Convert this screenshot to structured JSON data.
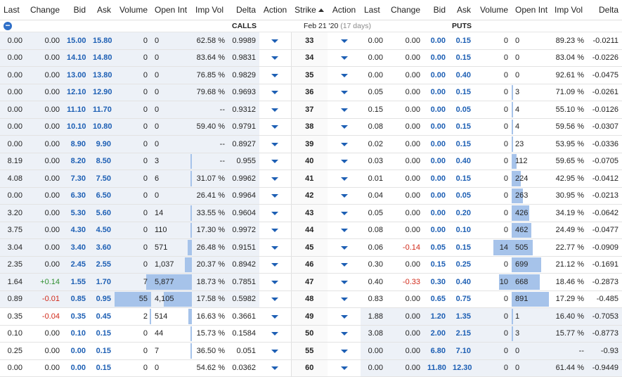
{
  "headers": {
    "calls": [
      "Last",
      "Change",
      "Bid",
      "Ask",
      "Volume",
      "Open Int",
      "Imp Vol",
      "Delta",
      "Action"
    ],
    "strike": "Strike",
    "puts": [
      "Action",
      "Last",
      "Change",
      "Bid",
      "Ask",
      "Volume",
      "Open Int",
      "Imp Vol",
      "Delta"
    ]
  },
  "labels": {
    "calls": "CALLS",
    "puts": "PUTS",
    "expiry": "Feb 21 '20",
    "days": "(17 days)",
    "collapse": "−"
  },
  "colors": {
    "bid_ask": "#1d5fb4",
    "positive": "#2f8f2f",
    "negative": "#d12a1a",
    "bar": "#a6c3ea",
    "in_the_money": "#edf1f7"
  },
  "rows": [
    {
      "strike": "33",
      "call": {
        "last": "0.00",
        "change": "0.00",
        "bid": "15.00",
        "ask": "15.80",
        "volume": "0",
        "oi": "0",
        "iv": "62.58 %",
        "delta": "0.9989"
      },
      "put": {
        "last": "0.00",
        "change": "0.00",
        "bid": "0.00",
        "ask": "0.15",
        "volume": "0",
        "oi": "0",
        "iv": "89.23 %",
        "delta": "-0.0211"
      }
    },
    {
      "strike": "34",
      "call": {
        "last": "0.00",
        "change": "0.00",
        "bid": "14.10",
        "ask": "14.80",
        "volume": "0",
        "oi": "0",
        "iv": "83.64 %",
        "delta": "0.9831"
      },
      "put": {
        "last": "0.00",
        "change": "0.00",
        "bid": "0.00",
        "ask": "0.15",
        "volume": "0",
        "oi": "0",
        "iv": "83.04 %",
        "delta": "-0.0226"
      }
    },
    {
      "strike": "35",
      "call": {
        "last": "0.00",
        "change": "0.00",
        "bid": "13.00",
        "ask": "13.80",
        "volume": "0",
        "oi": "0",
        "iv": "76.85 %",
        "delta": "0.9829"
      },
      "put": {
        "last": "0.00",
        "change": "0.00",
        "bid": "0.00",
        "ask": "0.40",
        "volume": "0",
        "oi": "0",
        "iv": "92.61 %",
        "delta": "-0.0475"
      }
    },
    {
      "strike": "36",
      "call": {
        "last": "0.00",
        "change": "0.00",
        "bid": "12.10",
        "ask": "12.90",
        "volume": "0",
        "oi": "0",
        "iv": "79.68 %",
        "delta": "0.9693"
      },
      "put": {
        "last": "0.05",
        "change": "0.00",
        "bid": "0.00",
        "ask": "0.15",
        "volume": "0",
        "oi": "3",
        "iv": "71.09 %",
        "delta": "-0.0261"
      }
    },
    {
      "strike": "37",
      "call": {
        "last": "0.00",
        "change": "0.00",
        "bid": "11.10",
        "ask": "11.70",
        "volume": "0",
        "oi": "0",
        "iv": "--",
        "delta": "0.9312"
      },
      "put": {
        "last": "0.15",
        "change": "0.00",
        "bid": "0.00",
        "ask": "0.05",
        "volume": "0",
        "oi": "4",
        "iv": "55.10 %",
        "delta": "-0.0126"
      }
    },
    {
      "strike": "38",
      "call": {
        "last": "0.00",
        "change": "0.00",
        "bid": "10.10",
        "ask": "10.80",
        "volume": "0",
        "oi": "0",
        "iv": "59.40 %",
        "delta": "0.9791"
      },
      "put": {
        "last": "0.08",
        "change": "0.00",
        "bid": "0.00",
        "ask": "0.15",
        "volume": "0",
        "oi": "4",
        "iv": "59.56 %",
        "delta": "-0.0307"
      }
    },
    {
      "strike": "39",
      "call": {
        "last": "0.00",
        "change": "0.00",
        "bid": "8.90",
        "ask": "9.90",
        "volume": "0",
        "oi": "0",
        "iv": "--",
        "delta": "0.8927"
      },
      "put": {
        "last": "0.02",
        "change": "0.00",
        "bid": "0.00",
        "ask": "0.15",
        "volume": "0",
        "oi": "23",
        "iv": "53.95 %",
        "delta": "-0.0336"
      }
    },
    {
      "strike": "40",
      "call": {
        "last": "8.19",
        "change": "0.00",
        "bid": "8.20",
        "ask": "8.50",
        "volume": "0",
        "oi": "3",
        "iv": "--",
        "delta": "0.955"
      },
      "put": {
        "last": "0.03",
        "change": "0.00",
        "bid": "0.00",
        "ask": "0.40",
        "volume": "0",
        "oi": "112",
        "iv": "59.65 %",
        "delta": "-0.0705"
      }
    },
    {
      "strike": "41",
      "call": {
        "last": "4.08",
        "change": "0.00",
        "bid": "7.30",
        "ask": "7.50",
        "volume": "0",
        "oi": "6",
        "iv": "31.07 %",
        "delta": "0.9962"
      },
      "put": {
        "last": "0.01",
        "change": "0.00",
        "bid": "0.00",
        "ask": "0.15",
        "volume": "0",
        "oi": "224",
        "iv": "42.95 %",
        "delta": "-0.0412"
      }
    },
    {
      "strike": "42",
      "call": {
        "last": "0.00",
        "change": "0.00",
        "bid": "6.30",
        "ask": "6.50",
        "volume": "0",
        "oi": "0",
        "iv": "26.41 %",
        "delta": "0.9964"
      },
      "put": {
        "last": "0.04",
        "change": "0.00",
        "bid": "0.00",
        "ask": "0.05",
        "volume": "0",
        "oi": "263",
        "iv": "30.95 %",
        "delta": "-0.0213"
      }
    },
    {
      "strike": "43",
      "call": {
        "last": "3.20",
        "change": "0.00",
        "bid": "5.30",
        "ask": "5.60",
        "volume": "0",
        "oi": "14",
        "iv": "33.55 %",
        "delta": "0.9604"
      },
      "put": {
        "last": "0.05",
        "change": "0.00",
        "bid": "0.00",
        "ask": "0.20",
        "volume": "0",
        "oi": "426",
        "iv": "34.19 %",
        "delta": "-0.0642"
      }
    },
    {
      "strike": "44",
      "call": {
        "last": "3.75",
        "change": "0.00",
        "bid": "4.30",
        "ask": "4.50",
        "volume": "0",
        "oi": "110",
        "iv": "17.30 %",
        "delta": "0.9972"
      },
      "put": {
        "last": "0.08",
        "change": "0.00",
        "bid": "0.00",
        "ask": "0.10",
        "volume": "0",
        "oi": "462",
        "iv": "24.49 %",
        "delta": "-0.0477"
      }
    },
    {
      "strike": "45",
      "call": {
        "last": "3.04",
        "change": "0.00",
        "bid": "3.40",
        "ask": "3.60",
        "volume": "0",
        "oi": "571",
        "iv": "26.48 %",
        "delta": "0.9151"
      },
      "put": {
        "last": "0.06",
        "change": "-0.14",
        "bid": "0.05",
        "ask": "0.15",
        "volume": "14",
        "oi": "505",
        "iv": "22.77 %",
        "delta": "-0.0909"
      }
    },
    {
      "strike": "46",
      "call": {
        "last": "2.35",
        "change": "0.00",
        "bid": "2.45",
        "ask": "2.55",
        "volume": "0",
        "oi": "1,037",
        "iv": "20.37 %",
        "delta": "0.8942"
      },
      "put": {
        "last": "0.30",
        "change": "0.00",
        "bid": "0.15",
        "ask": "0.25",
        "volume": "0",
        "oi": "699",
        "iv": "21.12 %",
        "delta": "-0.1691"
      }
    },
    {
      "strike": "47",
      "call": {
        "last": "1.64",
        "change": "+0.14",
        "bid": "1.55",
        "ask": "1.70",
        "volume": "7",
        "oi": "5,877",
        "iv": "18.73 %",
        "delta": "0.7851"
      },
      "put": {
        "last": "0.40",
        "change": "-0.33",
        "bid": "0.30",
        "ask": "0.40",
        "volume": "10",
        "oi": "668",
        "iv": "18.46 %",
        "delta": "-0.2873"
      }
    },
    {
      "strike": "48",
      "call": {
        "last": "0.89",
        "change": "-0.01",
        "bid": "0.85",
        "ask": "0.95",
        "volume": "55",
        "oi": "4,105",
        "iv": "17.58 %",
        "delta": "0.5982"
      },
      "put": {
        "last": "0.83",
        "change": "0.00",
        "bid": "0.65",
        "ask": "0.75",
        "volume": "0",
        "oi": "891",
        "iv": "17.29 %",
        "delta": "-0.485"
      }
    },
    {
      "strike": "49",
      "call": {
        "last": "0.35",
        "change": "-0.04",
        "bid": "0.35",
        "ask": "0.45",
        "volume": "2",
        "oi": "514",
        "iv": "16.63 %",
        "delta": "0.3661"
      },
      "put": {
        "last": "1.88",
        "change": "0.00",
        "bid": "1.20",
        "ask": "1.35",
        "volume": "0",
        "oi": "1",
        "iv": "16.40 %",
        "delta": "-0.7053"
      }
    },
    {
      "strike": "50",
      "call": {
        "last": "0.10",
        "change": "0.00",
        "bid": "0.10",
        "ask": "0.15",
        "volume": "0",
        "oi": "44",
        "iv": "15.73 %",
        "delta": "0.1584"
      },
      "put": {
        "last": "3.08",
        "change": "0.00",
        "bid": "2.00",
        "ask": "2.15",
        "volume": "0",
        "oi": "3",
        "iv": "15.77 %",
        "delta": "-0.8773"
      }
    },
    {
      "strike": "55",
      "call": {
        "last": "0.25",
        "change": "0.00",
        "bid": "0.00",
        "ask": "0.15",
        "volume": "0",
        "oi": "7",
        "iv": "36.50 %",
        "delta": "0.051"
      },
      "put": {
        "last": "0.00",
        "change": "0.00",
        "bid": "6.80",
        "ask": "7.10",
        "volume": "0",
        "oi": "0",
        "iv": "--",
        "delta": "-0.93"
      }
    },
    {
      "strike": "60",
      "call": {
        "last": "0.00",
        "change": "0.00",
        "bid": "0.00",
        "ask": "0.15",
        "volume": "0",
        "oi": "0",
        "iv": "54.62 %",
        "delta": "0.0362"
      },
      "put": {
        "last": "0.00",
        "change": "0.00",
        "bid": "11.80",
        "ask": "12.30",
        "volume": "0",
        "oi": "0",
        "iv": "61.44 %",
        "delta": "-0.9449"
      }
    }
  ]
}
